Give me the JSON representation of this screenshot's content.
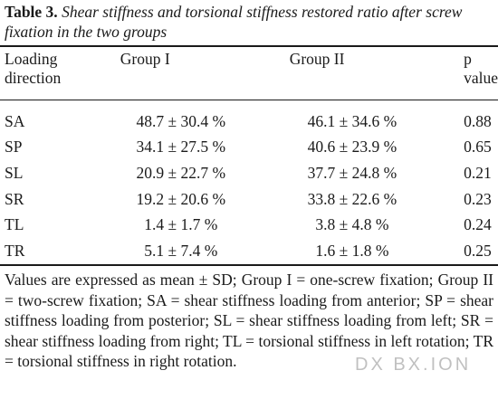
{
  "caption": {
    "label": "Table 3.",
    "text": "Shear stiffness and torsional stiffness restored ratio after screw fixation in the two groups"
  },
  "table": {
    "headers": [
      "Loading direction",
      "Group I",
      "Group II",
      "p value"
    ],
    "rows": [
      [
        "SA",
        "48.7 ± 30.4 %",
        "46.1 ± 34.6 %",
        "0.88"
      ],
      [
        "SP",
        "34.1 ± 27.5 %",
        "40.6 ± 23.9 %",
        "0.65"
      ],
      [
        "SL",
        "20.9 ± 22.7 %",
        "37.7 ± 24.8 %",
        "0.21"
      ],
      [
        "SR",
        "19.2 ± 20.6 %",
        "33.8 ± 22.6 %",
        "0.23"
      ],
      [
        "TL",
        "1.4 ± 1.7 %",
        "3.8 ± 4.8 %",
        "0.24"
      ],
      [
        "TR",
        "5.1 ± 7.4 %",
        "1.6 ± 1.8 %",
        "0.25"
      ]
    ]
  },
  "footnote": "Values are expressed as mean ± SD; Group I = one-screw fixation; Group II = two-screw fixation; SA = shear stiffness loading from anterior; SP = shear stiffness loading from posterior; SL = shear stiffness loading from left; SR = shear stiffness loading from right; TL = torsional stiffness in left rotation; TR = torsional stiffness in right rotation.",
  "watermark": "DX BX.ION"
}
